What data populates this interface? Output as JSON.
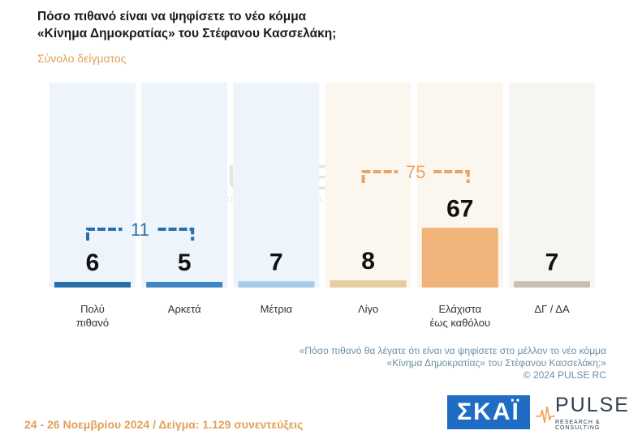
{
  "header": {
    "title_line1": "Πόσο πιθανό είναι να ψηφίσετε το νέο κόμμα",
    "title_line2": "«Κίνημα Δημοκρατίας» του Στέφανου Κασσελάκη;",
    "subtitle": "Σύνολο δείγματος"
  },
  "chart_data": {
    "type": "bar",
    "categories": [
      "Πολύ\nπιθανό",
      "Αρκετά",
      "Μέτρια",
      "Λίγο",
      "Ελάχιστα\nέως καθόλου",
      "ΔΓ / ΔΑ"
    ],
    "values": [
      6,
      5,
      7,
      8,
      67,
      7
    ],
    "ylim": [
      0,
      100
    ],
    "group_brackets": [
      {
        "label": "11",
        "from": 0,
        "to": 1,
        "color": "#2a6fa8"
      },
      {
        "label": "75",
        "from": 3,
        "to": 4,
        "color": "#e8a56a"
      }
    ],
    "colors": {
      "column_bg": [
        "#edf4fb",
        "#edf4fb",
        "#edf4fb",
        "#fbf6ee",
        "#fbf6ee",
        "#f7f5f2"
      ],
      "bar": [
        "#2a6fa8",
        "#3f86c4",
        "#a8cbe8",
        "#e6cc9e",
        "#f0b37a",
        "#c8bfb0"
      ]
    }
  },
  "watermark": {
    "word": "PULSE",
    "sub": "RESEARCH & CONSULTING"
  },
  "note": {
    "line1": "«Πόσο πιθανό θα λέγατε ότι είναι να ψηφίσετε στο μέλλον το νέο κόμμα",
    "line2": "«Κίνημα Δημοκρατίας» του Στέφανου Κασσελάκη;»",
    "line3": "©  2024  PULSE RC"
  },
  "footer": {
    "text": "24 - 26 Νοεμβρίου 2024  /  Δείγμα:  1.129 συνεντεύξεις"
  },
  "logos": {
    "skai": "ΣΚΑΪ",
    "pulse_word": "PULSE",
    "pulse_sub": "RESEARCH & CONSULTING"
  }
}
